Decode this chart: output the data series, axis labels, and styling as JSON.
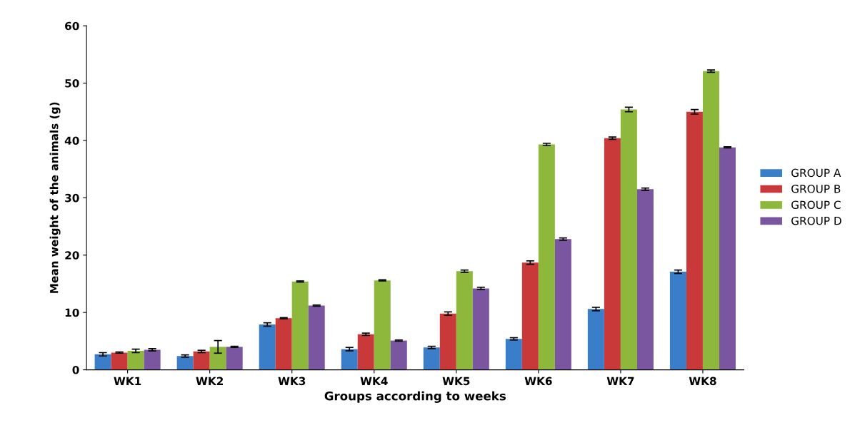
{
  "chart_data": {
    "type": "bar",
    "xlabel": "Groups according to weeks",
    "ylabel": "Mean weight of the animals (g)",
    "categories": [
      "WK1",
      "WK2",
      "WK3",
      "WK4",
      "WK5",
      "WK6",
      "WK7",
      "WK8"
    ],
    "series": [
      {
        "name": "GROUP A",
        "color": "#3a7dc9",
        "values": [
          2.7,
          2.4,
          7.9,
          3.6,
          3.9,
          5.4,
          10.6,
          17.1
        ],
        "errors": [
          0.3,
          0.2,
          0.3,
          0.3,
          0.2,
          0.2,
          0.3,
          0.3
        ]
      },
      {
        "name": "GROUP B",
        "color": "#c9393a",
        "values": [
          3.0,
          3.2,
          9.0,
          6.2,
          9.8,
          18.7,
          40.4,
          45.0
        ],
        "errors": [
          0.1,
          0.2,
          0.1,
          0.2,
          0.3,
          0.3,
          0.2,
          0.4
        ]
      },
      {
        "name": "GROUP C",
        "color": "#8db83c",
        "values": [
          3.3,
          4.0,
          15.4,
          15.6,
          17.2,
          39.3,
          45.4,
          52.1
        ],
        "errors": [
          0.3,
          1.1,
          0.1,
          0.1,
          0.2,
          0.2,
          0.4,
          0.2
        ]
      },
      {
        "name": "GROUP D",
        "color": "#7a55a0",
        "values": [
          3.5,
          4.0,
          11.2,
          5.1,
          14.2,
          22.8,
          31.5,
          38.8
        ],
        "errors": [
          0.2,
          0.1,
          0.1,
          0.1,
          0.2,
          0.2,
          0.2,
          0.1
        ]
      }
    ],
    "ylim": [
      0,
      60
    ],
    "yticks": [
      0,
      10,
      20,
      30,
      40,
      50,
      60
    ],
    "grid": false,
    "legend": "right"
  }
}
